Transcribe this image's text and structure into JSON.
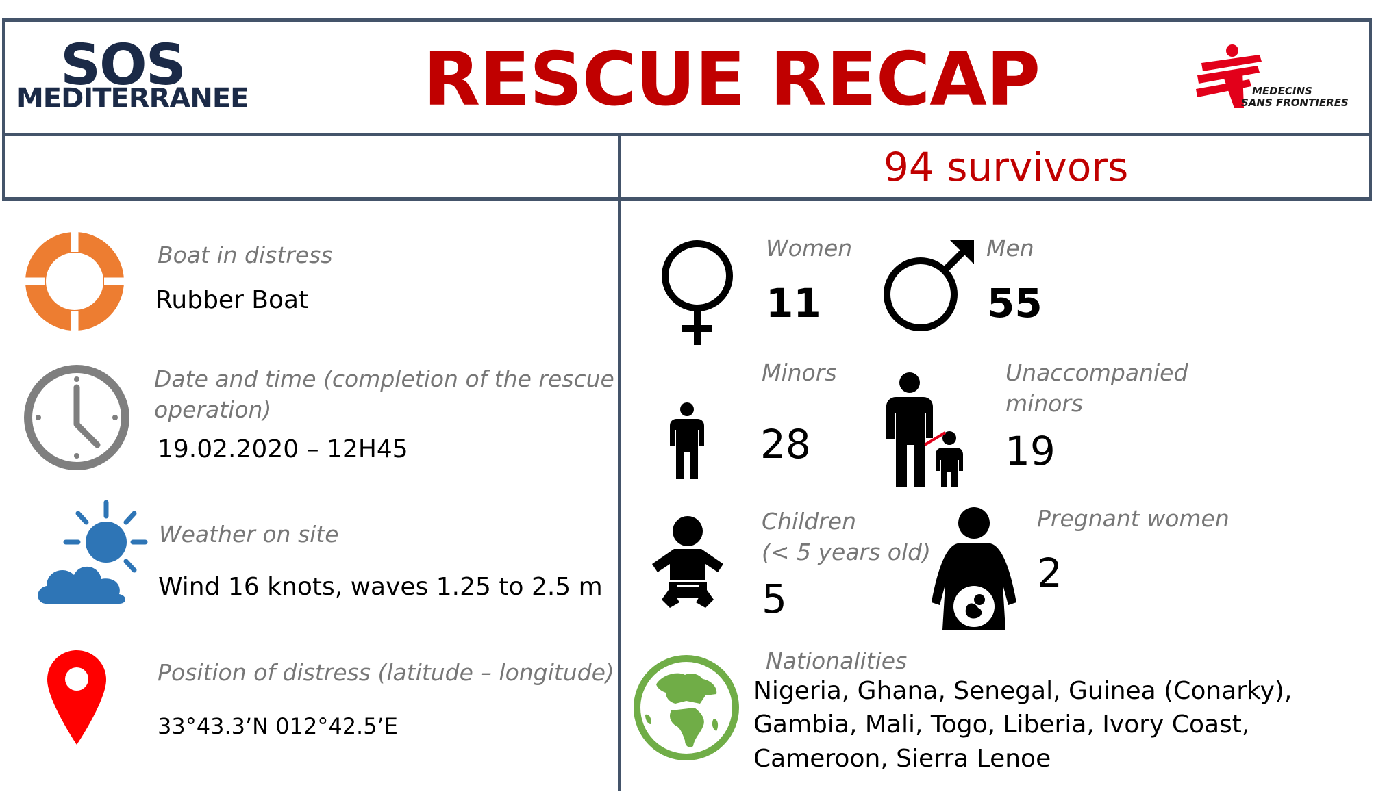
{
  "header": {
    "sos_logo_top": "SOS",
    "sos_logo_bottom": "MEDITERRANEE",
    "title": "RESCUE RECAP",
    "msf_logo_line1": "MEDECINS",
    "msf_logo_line2": "SANS FRONTIERES"
  },
  "survivors": "94 survivors",
  "left": {
    "boat": {
      "label": "Boat in distress",
      "value": "Rubber Boat"
    },
    "date": {
      "label_line1": "Date and time (completion of the rescue",
      "label_line2": "operation)",
      "value": "19.02.2020 – 12H45"
    },
    "weather": {
      "label": "Weather on site",
      "value": "Wind 16 knots, waves 1.25 to 2.5 m"
    },
    "position": {
      "label": "Position of distress (latitude – longitude)",
      "value": "33°43.3’N 012°42.5’E"
    }
  },
  "right": {
    "women": {
      "label": "Women",
      "value": "11"
    },
    "men": {
      "label": "Men",
      "value": "55"
    },
    "minors": {
      "label": "Minors",
      "value": "28"
    },
    "unaccompanied": {
      "label_line1": "Unaccompanied",
      "label_line2": "minors",
      "value": "19"
    },
    "children": {
      "label_line1": "Children",
      "label_line2": "(< 5 years old)",
      "value": "5"
    },
    "pregnant": {
      "label": "Pregnant women",
      "value": "2"
    },
    "nationalities": {
      "label": "Nationalities",
      "line1": "Nigeria, Ghana, Senegal, Guinea (Conarky),",
      "line2": "Gambia, Mali, Togo, Liberia, Ivory Coast,",
      "line3": "Cameroon, Sierra Lenoe"
    }
  },
  "colors": {
    "title_red": "#c00000",
    "frame": "#44546a",
    "navy": "#1b2a47",
    "orange": "#ed7d31",
    "gray_icon": "#7f7f7f",
    "weather_blue": "#2e75b6",
    "pin_red": "#ff0000",
    "globe_green": "#70ad47",
    "msf_red": "#e2001a"
  },
  "icons": [
    "lifebuoy-icon",
    "clock-icon",
    "weather-icon",
    "location-pin-icon",
    "female-icon",
    "male-icon",
    "minor-icon",
    "unaccompanied-minor-icon",
    "baby-icon",
    "pregnant-woman-icon",
    "globe-icon"
  ]
}
